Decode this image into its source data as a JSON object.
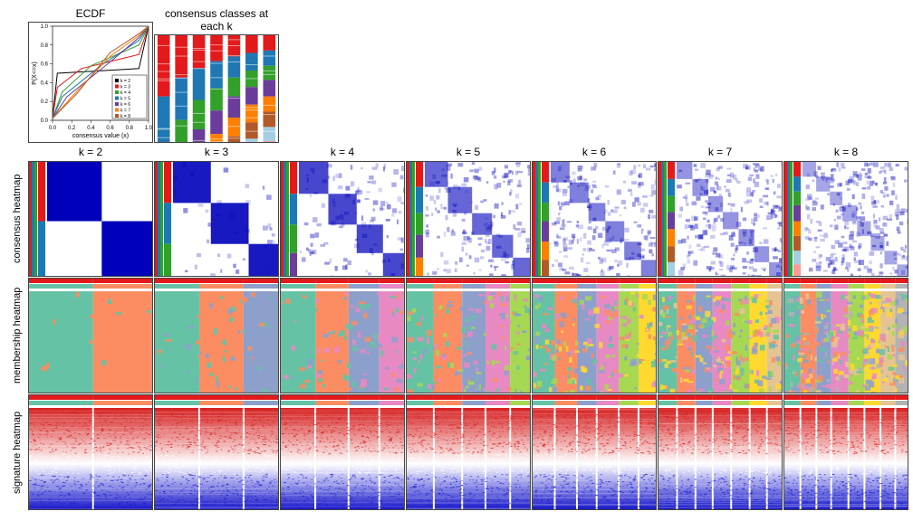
{
  "top": {
    "ecdf": {
      "title": "ECDF",
      "xlabel": "consensus value (x)",
      "ylabel": "P(X<=x)",
      "xlim": [
        0,
        1
      ],
      "ylim": [
        0,
        1
      ],
      "xticks": [
        0.0,
        0.2,
        0.4,
        0.6,
        0.8,
        1.0
      ],
      "yticks": [
        0.0,
        0.2,
        0.4,
        0.6,
        0.8,
        1.0
      ],
      "legend_title": "",
      "series": [
        {
          "label": "k = 2",
          "color": "#000000",
          "pts": [
            [
              0,
              0.02
            ],
            [
              0.05,
              0.5
            ],
            [
              0.9,
              0.55
            ],
            [
              1,
              1
            ]
          ]
        },
        {
          "label": "k = 3",
          "color": "#e31a1c",
          "pts": [
            [
              0,
              0.02
            ],
            [
              0.05,
              0.35
            ],
            [
              0.3,
              0.55
            ],
            [
              0.9,
              0.7
            ],
            [
              1,
              1
            ]
          ]
        },
        {
          "label": "k = 4",
          "color": "#33a02c",
          "pts": [
            [
              0,
              0.02
            ],
            [
              0.1,
              0.3
            ],
            [
              0.4,
              0.58
            ],
            [
              0.9,
              0.8
            ],
            [
              1,
              1
            ]
          ]
        },
        {
          "label": "k = 5",
          "color": "#1f78b4",
          "pts": [
            [
              0,
              0.02
            ],
            [
              0.1,
              0.25
            ],
            [
              0.5,
              0.58
            ],
            [
              0.9,
              0.85
            ],
            [
              1,
              1
            ]
          ]
        },
        {
          "label": "k = 6",
          "color": "#6a3d9a",
          "pts": [
            [
              0,
              0.02
            ],
            [
              0.15,
              0.25
            ],
            [
              0.6,
              0.62
            ],
            [
              0.9,
              0.88
            ],
            [
              1,
              1
            ]
          ]
        },
        {
          "label": "k = 7",
          "color": "#ff7f00",
          "pts": [
            [
              0,
              0.02
            ],
            [
              0.2,
              0.25
            ],
            [
              0.6,
              0.68
            ],
            [
              0.9,
              0.9
            ],
            [
              1,
              1
            ]
          ]
        },
        {
          "label": "k = 8",
          "color": "#b15928",
          "pts": [
            [
              0,
              0.02
            ],
            [
              0.25,
              0.28
            ],
            [
              0.6,
              0.72
            ],
            [
              0.9,
              0.92
            ],
            [
              1,
              1
            ]
          ]
        }
      ],
      "label_fontsize": 8
    },
    "classes": {
      "title": "consensus classes at each k",
      "k_values": [
        2,
        3,
        4,
        5,
        6,
        7,
        8
      ],
      "palette": [
        "#e31a1c",
        "#1f78b4",
        "#33a02c",
        "#6a3d9a",
        "#ff7f00",
        "#b15928",
        "#a6cee3",
        "#fb9a99"
      ],
      "columns_per_k": {
        "2": [
          [
            0,
            0.52,
            0
          ],
          [
            0.52,
            1,
            1
          ]
        ],
        "3": [
          [
            0,
            0.36,
            0
          ],
          [
            0.36,
            0.72,
            1
          ],
          [
            0.72,
            1,
            2
          ]
        ],
        "4": [
          [
            0,
            0.28,
            0
          ],
          [
            0.28,
            0.55,
            1
          ],
          [
            0.55,
            0.8,
            2
          ],
          [
            0.8,
            1,
            3
          ]
        ],
        "5": [
          [
            0,
            0.22,
            0
          ],
          [
            0.22,
            0.45,
            1
          ],
          [
            0.45,
            0.64,
            2
          ],
          [
            0.64,
            0.84,
            3
          ],
          [
            0.84,
            1,
            4
          ]
        ],
        "6": [
          [
            0,
            0.18,
            0
          ],
          [
            0.18,
            0.36,
            1
          ],
          [
            0.36,
            0.52,
            2
          ],
          [
            0.52,
            0.7,
            3
          ],
          [
            0.7,
            0.86,
            4
          ],
          [
            0.86,
            1,
            5
          ]
        ],
        "7": [
          [
            0,
            0.15,
            0
          ],
          [
            0.15,
            0.3,
            1
          ],
          [
            0.3,
            0.44,
            2
          ],
          [
            0.44,
            0.59,
            3
          ],
          [
            0.59,
            0.74,
            4
          ],
          [
            0.74,
            0.88,
            5
          ],
          [
            0.88,
            1,
            6
          ]
        ],
        "8": [
          [
            0,
            0.13,
            0
          ],
          [
            0.13,
            0.26,
            1
          ],
          [
            0.26,
            0.38,
            2
          ],
          [
            0.38,
            0.52,
            3
          ],
          [
            0.52,
            0.65,
            4
          ],
          [
            0.65,
            0.78,
            5
          ],
          [
            0.78,
            0.9,
            6
          ],
          [
            0.9,
            1,
            7
          ]
        ]
      }
    }
  },
  "columns": [
    {
      "k": 2,
      "label": "k = 2"
    },
    {
      "k": 3,
      "label": "k = 3"
    },
    {
      "k": 4,
      "label": "k = 4"
    },
    {
      "k": 5,
      "label": "k = 5"
    },
    {
      "k": 6,
      "label": "k = 6"
    },
    {
      "k": 7,
      "label": "k = 7"
    },
    {
      "k": 8,
      "label": "k = 8"
    }
  ],
  "rows": {
    "consensus": {
      "label": "consensus heatmap"
    },
    "membership": {
      "label": "membership heatmap"
    },
    "signature": {
      "label": "signature heatmap"
    }
  },
  "consensus": {
    "colors_low": "#ffffff",
    "colors_high": "#0000bb",
    "track_colors": [
      "#e31a1c",
      "#1f78b4",
      "#33a02c",
      "#6a3d9a",
      "#ff7f00",
      "#b15928",
      "#a6cee3",
      "#fb9a99"
    ],
    "blocks": {
      "2": [
        0.52
      ],
      "3": [
        0.36,
        0.72
      ],
      "4": [
        0.28,
        0.55,
        0.8
      ],
      "5": [
        0.22,
        0.45,
        0.64,
        0.84
      ],
      "6": [
        0.18,
        0.36,
        0.52,
        0.7,
        0.86
      ],
      "7": [
        0.15,
        0.3,
        0.44,
        0.59,
        0.74,
        0.88
      ],
      "8": [
        0.13,
        0.26,
        0.38,
        0.52,
        0.65,
        0.78,
        0.9
      ]
    },
    "clarity": {
      "2": 1.0,
      "3": 0.9,
      "4": 0.72,
      "5": 0.6,
      "6": 0.5,
      "7": 0.42,
      "8": 0.35
    }
  },
  "membership": {
    "palette": [
      "#66c2a5",
      "#fc8d62",
      "#8da0cb",
      "#e78ac3",
      "#a6d854",
      "#ffd92f",
      "#e5c494",
      "#b3b3b3"
    ],
    "ann_color": "#e31a1c",
    "noise": {
      "2": 0.03,
      "3": 0.08,
      "4": 0.15,
      "5": 0.22,
      "6": 0.3,
      "7": 0.38,
      "8": 0.45
    }
  },
  "signature": {
    "top_color": "#d62020",
    "bottom_color": "#1a1acc",
    "mid_color": "#ffffff",
    "ann_color": "#e31a1c",
    "noise": 0.6,
    "white_gap_fracs": {
      "2": [
        0.52
      ],
      "3": [
        0.36,
        0.72
      ],
      "4": [
        0.28,
        0.55,
        0.8
      ],
      "5": [
        0.22,
        0.45,
        0.64,
        0.84
      ],
      "6": [
        0.18,
        0.36,
        0.52,
        0.7,
        0.86
      ],
      "7": [
        0.15,
        0.3,
        0.44,
        0.59,
        0.74,
        0.88
      ],
      "8": [
        0.13,
        0.26,
        0.38,
        0.52,
        0.65,
        0.78,
        0.9
      ]
    }
  },
  "style": {
    "panel_border": "#444444",
    "background": "#ffffff",
    "title_fontsize": 12,
    "rowlabel_fontsize": 11
  }
}
